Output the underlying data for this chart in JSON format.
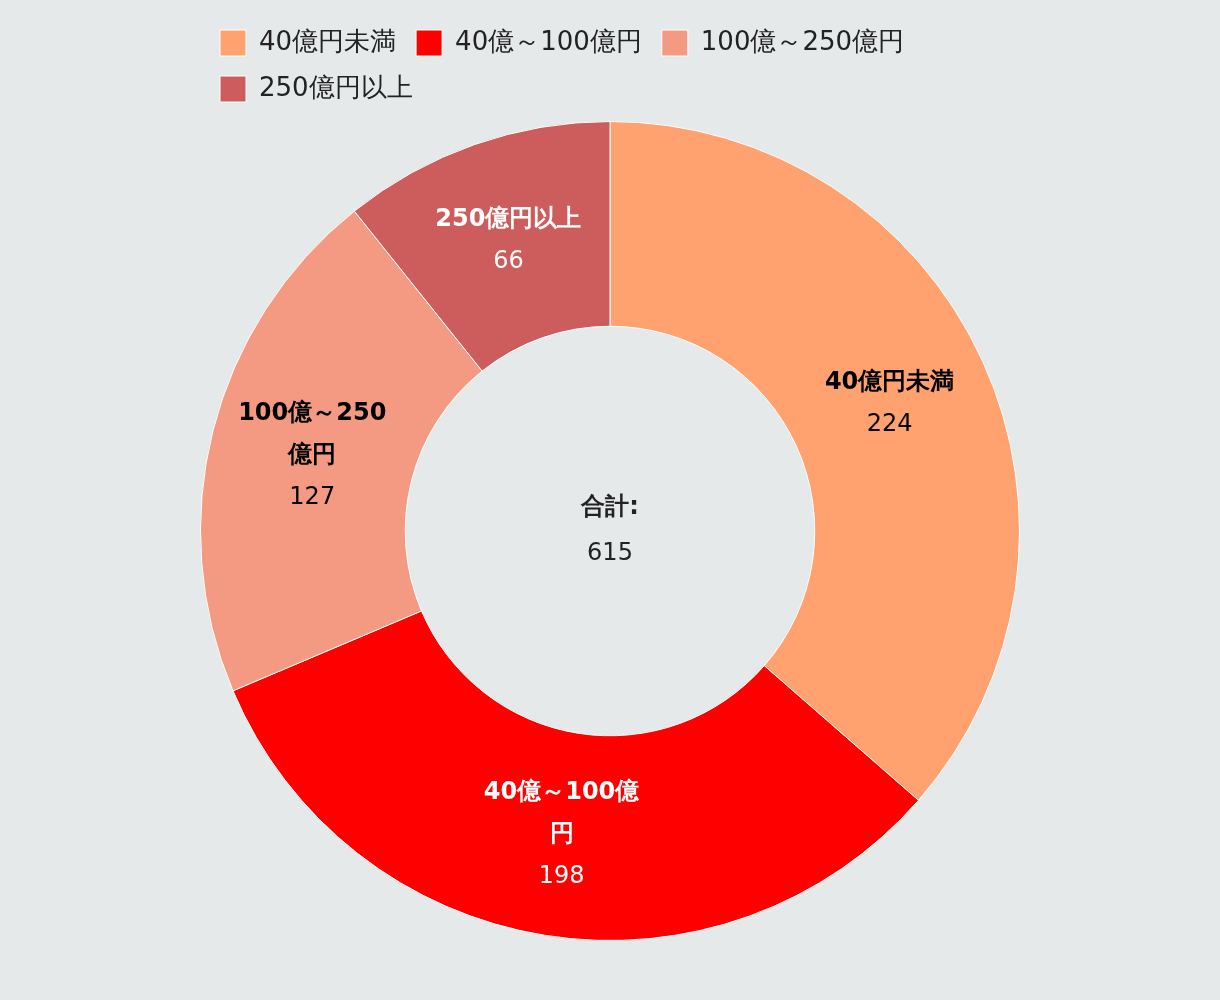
{
  "chart_data": {
    "type": "donut",
    "categories": [
      "40億円未満",
      "40億～100億円",
      "100億～250億円",
      "250億円以上"
    ],
    "values": [
      224,
      198,
      127,
      66
    ],
    "colors": [
      "#ffa270",
      "#ff0000",
      "#f49a82",
      "#cd5c5c"
    ],
    "data_labels": true,
    "legend": "top left",
    "annotations": [
      "合計:",
      "615"
    ]
  }
}
